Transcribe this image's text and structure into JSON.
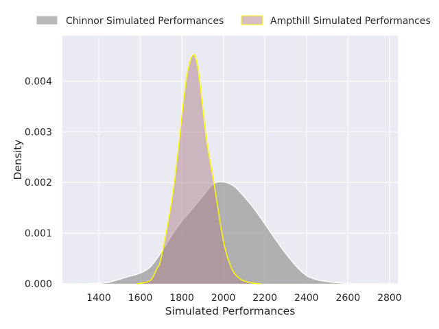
{
  "chart_data": {
    "type": "area",
    "title": "",
    "xlabel": "Simulated Performances",
    "ylabel": "Density",
    "xlim": [
      1225,
      2840
    ],
    "ylim": [
      0,
      0.0049
    ],
    "x_ticks": [
      1400,
      1600,
      1800,
      2000,
      2200,
      2400,
      2600,
      2800
    ],
    "y_ticks": [
      0.0,
      0.001,
      0.002,
      0.003,
      0.004
    ],
    "y_tick_labels": [
      "0.000",
      "0.001",
      "0.002",
      "0.003",
      "0.004"
    ],
    "grid": true,
    "background": "#eaeaf2",
    "legend": {
      "placement": "top-center-outside",
      "columns": 2
    },
    "series": [
      {
        "name": "Chinnor Simulated Performances",
        "fill": "#888888",
        "fill_opacity": 0.6,
        "stroke": "#ffffff",
        "x": [
          1300,
          1400,
          1450,
          1500,
          1550,
          1600,
          1650,
          1700,
          1750,
          1800,
          1850,
          1900,
          1950,
          2000,
          2050,
          2100,
          2150,
          2200,
          2250,
          2300,
          2350,
          2400,
          2450,
          2500,
          2550,
          2600,
          2650,
          2700,
          2760
        ],
        "y": [
          0.0,
          1e-05,
          3e-05,
          9e-05,
          0.00015,
          0.00021,
          0.00034,
          0.00062,
          0.00095,
          0.00124,
          0.00148,
          0.00173,
          0.00197,
          0.00201,
          0.00193,
          0.00172,
          0.00147,
          0.00118,
          0.00088,
          0.0006,
          0.00035,
          0.00016,
          8e-05,
          4e-05,
          2e-05,
          1e-05,
          0.0,
          0.0,
          0.0
        ]
      },
      {
        "name": "Ampthill Simulated Performances",
        "fill": "#b07f8c",
        "fill_opacity": 0.5,
        "stroke": "#ffff00",
        "x": [
          1585,
          1600,
          1650,
          1680,
          1700,
          1750,
          1780,
          1800,
          1820,
          1840,
          1855,
          1865,
          1880,
          1900,
          1920,
          1950,
          2000,
          2040,
          2080,
          2120,
          2150,
          2180
        ],
        "y": [
          0.0,
          1e-05,
          7e-05,
          0.0003,
          0.0005,
          0.0016,
          0.00255,
          0.0033,
          0.004,
          0.0044,
          0.00452,
          0.00448,
          0.0042,
          0.0035,
          0.0028,
          0.0021,
          0.00085,
          0.0003,
          0.0001,
          3e-05,
          1e-05,
          0.0
        ]
      }
    ]
  }
}
